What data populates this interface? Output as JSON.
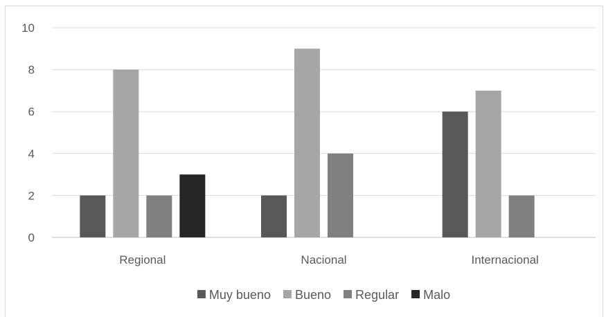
{
  "chart_data": {
    "type": "bar",
    "categories": [
      "Regional",
      "Nacional",
      "Internacional"
    ],
    "series": [
      {
        "name": "Muy bueno",
        "values": [
          2,
          2,
          6
        ],
        "color": "#595959"
      },
      {
        "name": "Bueno",
        "values": [
          8,
          9,
          7
        ],
        "color": "#a6a6a6"
      },
      {
        "name": "Regular",
        "values": [
          2,
          4,
          2
        ],
        "color": "#808080"
      },
      {
        "name": "Malo",
        "values": [
          3,
          0,
          0
        ],
        "color": "#262626"
      }
    ],
    "ylim": [
      0,
      10
    ],
    "yticks": [
      0,
      2,
      4,
      6,
      8,
      10
    ],
    "grid": true,
    "legend_position": "bottom",
    "title": "",
    "xlabel": "",
    "ylabel": ""
  }
}
